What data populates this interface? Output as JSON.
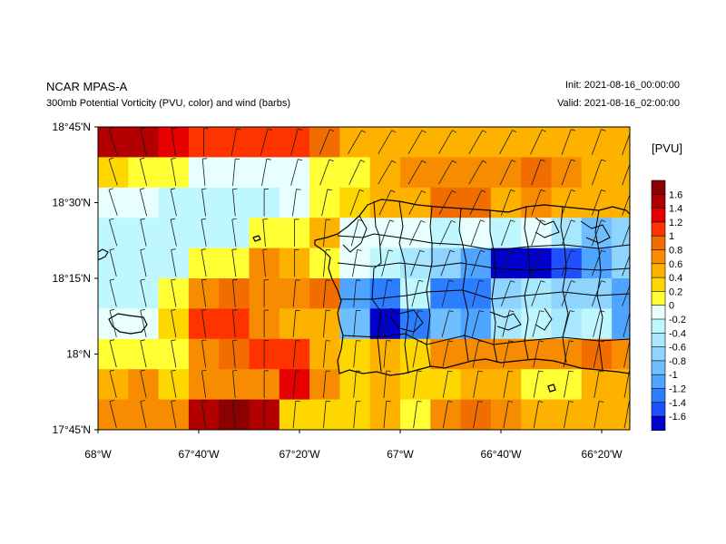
{
  "header": {
    "model": "NCAR MPAS-A",
    "subtitle": "300mb Potential Vorticity (PVU, color) and wind (barbs)",
    "init": "Init: 2021-08-16_00:00:00",
    "valid": "Valid: 2021-08-16_02:00:00"
  },
  "map": {
    "lat_labels": [
      "18°45'N",
      "18°30'N",
      "18°15'N",
      "18°N",
      "17°45'N"
    ],
    "lon_labels": [
      "68°W",
      "67°40'W",
      "67°20'W",
      "67°W",
      "66°40'W",
      "66°20'W"
    ],
    "extent": {
      "lon_min": -68.0,
      "lon_max": -66.24,
      "lat_min": 17.75,
      "lat_max": 18.75
    }
  },
  "colorbar": {
    "title": "[PVU]",
    "labels": [
      "1.6",
      "1.4",
      "1.2",
      "1",
      "0.8",
      "0.6",
      "0.4",
      "0.2",
      "0",
      "-0.2",
      "-0.4",
      "-0.6",
      "-0.8",
      "-1",
      "-1.2",
      "-1.4",
      "-1.6"
    ],
    "colors": [
      "#8b0000",
      "#b20000",
      "#e60000",
      "#ff3300",
      "#f26d00",
      "#f88c00",
      "#fdb200",
      "#ffd700",
      "#ffff33",
      "#e8ffff",
      "#bff7ff",
      "#a8e8ff",
      "#8ed4ff",
      "#6fbfff",
      "#4ea4ff",
      "#2d7dff",
      "#1f4fff",
      "#0000cc"
    ]
  },
  "grid": {
    "columns": 18,
    "rows": 10,
    "values": [
      [
        1,
        1,
        2,
        3,
        3,
        3,
        3,
        4,
        6,
        6,
        6,
        6,
        6,
        6,
        6,
        6,
        6,
        6
      ],
      [
        7,
        8,
        8,
        9,
        9,
        9,
        9,
        8,
        8,
        6,
        5,
        5,
        5,
        5,
        4,
        5,
        6,
        6
      ],
      [
        9,
        9,
        10,
        10,
        10,
        10,
        9,
        8,
        7,
        6,
        6,
        4,
        4,
        6,
        5,
        6,
        6,
        6
      ],
      [
        10,
        10,
        10,
        10,
        10,
        8,
        8,
        6,
        9,
        9,
        9,
        10,
        9,
        10,
        9,
        11,
        13,
        12
      ],
      [
        10,
        10,
        10,
        8,
        8,
        5,
        6,
        8,
        9,
        10,
        11,
        12,
        14,
        17,
        17,
        16,
        14,
        12
      ],
      [
        10,
        10,
        8,
        5,
        4,
        5,
        5,
        4,
        14,
        15,
        10,
        15,
        15,
        12,
        11,
        12,
        12,
        14
      ],
      [
        9,
        9,
        7,
        3,
        3,
        5,
        6,
        6,
        13,
        17,
        15,
        13,
        14,
        11,
        10,
        11,
        10,
        14
      ],
      [
        8,
        8,
        8,
        5,
        4,
        3,
        3,
        6,
        7,
        6,
        7,
        5,
        5,
        5,
        5,
        5,
        4,
        5
      ],
      [
        6,
        5,
        7,
        5,
        5,
        5,
        2,
        5,
        7,
        6,
        7,
        7,
        6,
        6,
        8,
        8,
        6,
        6
      ],
      [
        5,
        5,
        5,
        1,
        0,
        1,
        7,
        7,
        7,
        6,
        8,
        5,
        4,
        5,
        6,
        6,
        6,
        6
      ]
    ]
  },
  "wind": {
    "angles_deg": [
      [
        18,
        12,
        8,
        0,
        -10,
        -15,
        -15,
        -22,
        -30,
        -30,
        -30,
        -30,
        -30,
        -28,
        -25,
        -20,
        -20,
        -20
      ],
      [
        18,
        14,
        10,
        5,
        -5,
        -10,
        -15,
        -20,
        -25,
        -30,
        -30,
        -30,
        -30,
        -25,
        -20,
        -20,
        -20,
        -20
      ],
      [
        18,
        14,
        12,
        8,
        5,
        0,
        -8,
        -12,
        -20,
        -25,
        -28,
        -28,
        -25,
        -20,
        -20,
        -20,
        -20,
        -20
      ],
      [
        16,
        12,
        12,
        10,
        8,
        5,
        0,
        -5,
        -15,
        -20,
        -25,
        -25,
        -20,
        -20,
        -20,
        -20,
        -20,
        -20
      ],
      [
        14,
        12,
        10,
        10,
        8,
        5,
        0,
        -5,
        -10,
        -15,
        -20,
        -20,
        -20,
        -20,
        -20,
        -20,
        -20,
        -20
      ],
      [
        14,
        12,
        10,
        8,
        5,
        0,
        -5,
        -5,
        -5,
        -10,
        -15,
        -15,
        -15,
        -20,
        -20,
        -20,
        -20,
        -20
      ],
      [
        14,
        12,
        10,
        8,
        5,
        0,
        -5,
        -5,
        -5,
        -8,
        -12,
        -15,
        -15,
        -15,
        -15,
        -15,
        -15,
        -15
      ],
      [
        14,
        12,
        10,
        8,
        5,
        0,
        -5,
        -5,
        -5,
        -5,
        -10,
        -12,
        -12,
        -12,
        -12,
        -12,
        -12,
        -12
      ],
      [
        14,
        12,
        10,
        8,
        5,
        0,
        -5,
        -5,
        -5,
        -5,
        -8,
        -10,
        -10,
        -10,
        -10,
        -10,
        -10,
        -10
      ],
      [
        14,
        12,
        10,
        8,
        5,
        0,
        -5,
        -5,
        -5,
        -5,
        -8,
        -10,
        -10,
        -10,
        -10,
        -10,
        -10,
        -10
      ]
    ]
  }
}
